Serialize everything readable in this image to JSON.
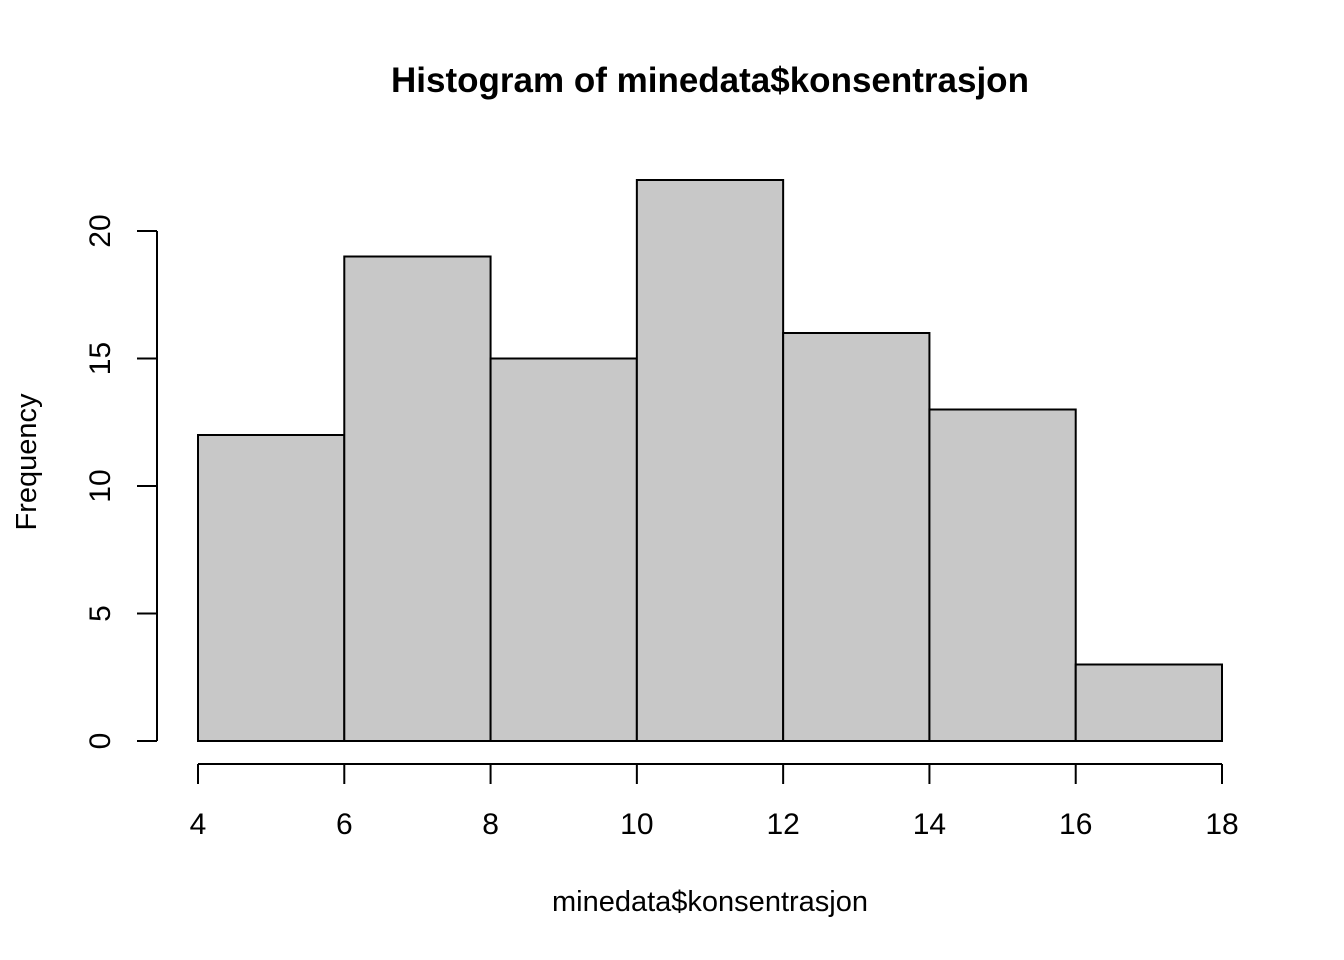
{
  "chart_data": {
    "type": "bar",
    "title": "Histogram of minedata$konsentrasjon",
    "xlabel": "minedata$konsentrasjon",
    "ylabel": "Frequency",
    "bin_edges": [
      4,
      6,
      8,
      10,
      12,
      14,
      16,
      18
    ],
    "values": [
      12,
      19,
      15,
      22,
      16,
      13,
      3
    ],
    "xlim": [
      4,
      18
    ],
    "ylim": [
      0,
      22
    ],
    "x_ticks": [
      4,
      6,
      8,
      10,
      12,
      14,
      16,
      18
    ],
    "y_ticks": [
      0,
      5,
      10,
      15,
      20
    ],
    "bar_fill": "#c8c8c8",
    "grid": false,
    "legend": "none"
  }
}
